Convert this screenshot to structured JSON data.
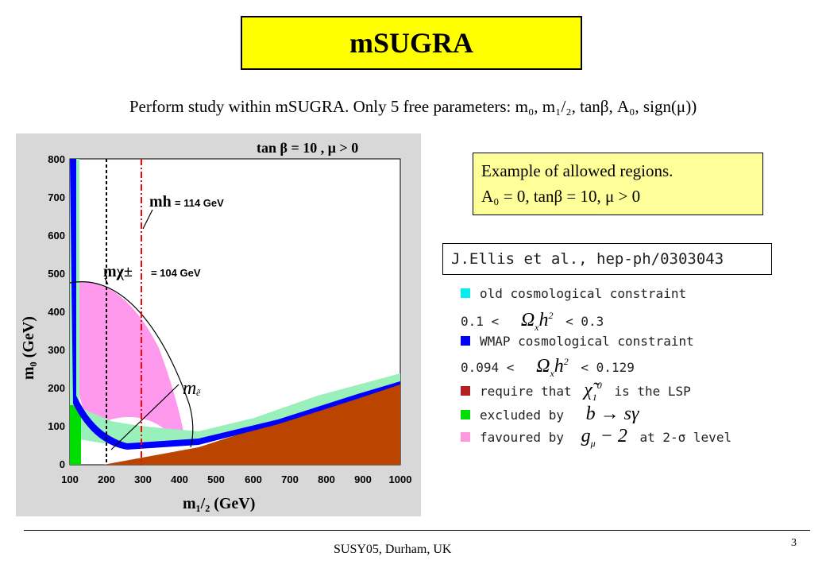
{
  "slide": {
    "title": "mSUGRA",
    "subtitle": "Perform study within mSUGRA. Only 5 free parameters: m₀, m₁/₂, tanβ, A₀, sign(μ))",
    "example_line1": "Example of allowed regions.",
    "example_line2": "A₀ = 0, tanβ = 10, μ > 0",
    "reference": "J.Ellis et al., hep-ph/0303043",
    "footer": "SUSY05, Durham, UK",
    "page_number": "3"
  },
  "legend": {
    "old_label": "old cosmological constraint",
    "old_range_pre": "0.1 <",
    "old_range_post": "< 0.3",
    "wmap_label": "WMAP cosmological constraint",
    "wmap_range_pre": "0.094 <",
    "wmap_range_post": "< 0.129",
    "lsp_pre": "require that",
    "lsp_post": "is the LSP",
    "bsg_pre": "excluded by",
    "g2_pre": "favoured by",
    "g2_post": "at 2-σ level",
    "colors": {
      "old": "#00f0f0",
      "wmap": "#0000ff",
      "lsp": "#b22222",
      "bsg": "#00dd00",
      "g2": "#ff99dd"
    }
  },
  "plot": {
    "header": "tan β = 10 ,  μ > 0",
    "ylabel": "m₀ (GeV)",
    "xlabel": "m₁/₂ (GeV)",
    "x_ticks": [
      "100",
      "200",
      "300",
      "400",
      "500",
      "600",
      "700",
      "800",
      "900",
      "1000"
    ],
    "y_ticks": [
      "0",
      "100",
      "200",
      "300",
      "400",
      "500",
      "600",
      "700",
      "800"
    ],
    "mh_label": "mh",
    "mh_value": "= 114 GeV",
    "mchi_label": "mχ±",
    "mchi_value": "= 104 GeV",
    "me_label": "m",
    "colors": {
      "stau": "#bb4400",
      "cosmo_old": "#99f0bb",
      "g2": "#ff99ee",
      "wmap": "#0000ff",
      "bsg": "#00dd00",
      "panel": "#d8d8d8"
    }
  }
}
